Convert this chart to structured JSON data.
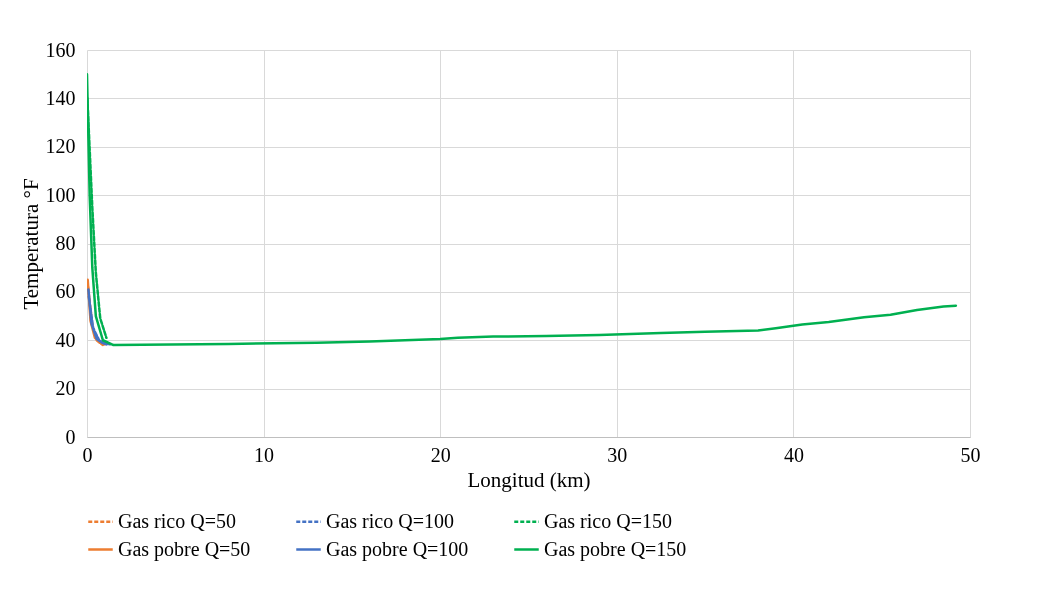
{
  "chart_data": {
    "type": "line",
    "xlabel": "Longitud (km)",
    "ylabel": "Temperatura °F",
    "xlim": [
      0,
      50
    ],
    "ylim": [
      0,
      160
    ],
    "xticks": [
      0,
      10,
      20,
      30,
      40,
      50
    ],
    "yticks": [
      0,
      20,
      40,
      60,
      80,
      100,
      120,
      140,
      160
    ],
    "grid": true,
    "legend": "bottom",
    "marker": "none",
    "series": [
      {
        "name": "Gas rico Q=50",
        "color": "#ed7d31",
        "line_style": "dashed",
        "x": [
          0.06,
          0.3,
          0.55,
          0.75,
          0.9
        ],
        "values": [
          62,
          46,
          40,
          38.8,
          38.1
        ]
      },
      {
        "name": "Gas rico Q=100",
        "color": "#4472c4",
        "line_style": "dashed",
        "x": [
          0.1,
          0.35,
          0.7,
          1.1,
          1.3
        ],
        "values": [
          58,
          45,
          39.8,
          38.6,
          38.3
        ]
      },
      {
        "name": "Gas rico Q=150",
        "color": "#00b050",
        "line_style": "dashed",
        "x": [
          0.02,
          0.3,
          0.5,
          0.75,
          1.1
        ],
        "values": [
          140,
          95,
          68,
          49,
          41
        ]
      },
      {
        "name": "Gas pobre Q=50",
        "color": "#ed7d31",
        "line_style": "solid",
        "x": [
          0.04,
          0.2,
          0.45,
          0.8,
          1.0
        ],
        "values": [
          65,
          48,
          41,
          38.8,
          38.3
        ]
      },
      {
        "name": "Gas pobre Q=100",
        "color": "#4472c4",
        "line_style": "solid",
        "x": [
          0.08,
          0.25,
          0.55,
          0.9,
          1.1
        ],
        "values": [
          61,
          47,
          40.5,
          38.8,
          38.3
        ]
      },
      {
        "name": "Gas pobre Q=150",
        "color": "#00b050",
        "line_style": "solid",
        "x": [
          0,
          0.15,
          0.3,
          0.5,
          0.9,
          1.5,
          8,
          13,
          16,
          18,
          20,
          21,
          23,
          26,
          29,
          32.5,
          35,
          38,
          39,
          40.5,
          42,
          44,
          45.5,
          47,
          48.5,
          49.2
        ],
        "values": [
          150,
          100,
          70,
          50,
          40,
          38,
          38.5,
          39,
          39.5,
          40,
          40.5,
          41,
          41.5,
          41.8,
          42.2,
          43,
          43.5,
          44,
          45,
          46.5,
          47.5,
          49.5,
          50.5,
          52.5,
          54,
          54.3
        ]
      }
    ]
  }
}
